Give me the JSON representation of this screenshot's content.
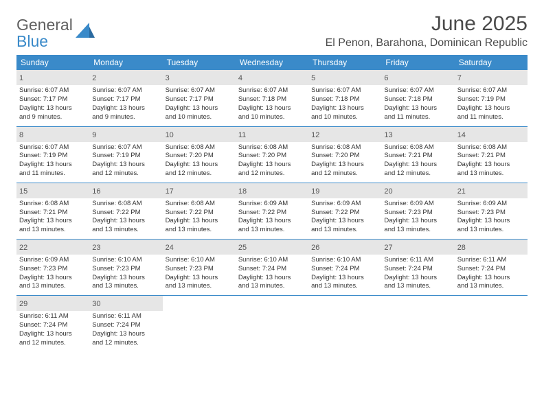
{
  "logo": {
    "line1": "General",
    "line2": "Blue"
  },
  "title": "June 2025",
  "subtitle": "El Penon, Barahona, Dominican Republic",
  "colors": {
    "header_bg": "#3a8ac9",
    "header_text": "#ffffff",
    "daynum_bg": "#e6e6e6",
    "border": "#3a8ac9",
    "body_text": "#333333",
    "title_text": "#4a4a4a"
  },
  "day_headers": [
    "Sunday",
    "Monday",
    "Tuesday",
    "Wednesday",
    "Thursday",
    "Friday",
    "Saturday"
  ],
  "weeks": [
    [
      {
        "n": "1",
        "sr": "Sunrise: 6:07 AM",
        "ss": "Sunset: 7:17 PM",
        "d1": "Daylight: 13 hours",
        "d2": "and 9 minutes."
      },
      {
        "n": "2",
        "sr": "Sunrise: 6:07 AM",
        "ss": "Sunset: 7:17 PM",
        "d1": "Daylight: 13 hours",
        "d2": "and 9 minutes."
      },
      {
        "n": "3",
        "sr": "Sunrise: 6:07 AM",
        "ss": "Sunset: 7:17 PM",
        "d1": "Daylight: 13 hours",
        "d2": "and 10 minutes."
      },
      {
        "n": "4",
        "sr": "Sunrise: 6:07 AM",
        "ss": "Sunset: 7:18 PM",
        "d1": "Daylight: 13 hours",
        "d2": "and 10 minutes."
      },
      {
        "n": "5",
        "sr": "Sunrise: 6:07 AM",
        "ss": "Sunset: 7:18 PM",
        "d1": "Daylight: 13 hours",
        "d2": "and 10 minutes."
      },
      {
        "n": "6",
        "sr": "Sunrise: 6:07 AM",
        "ss": "Sunset: 7:18 PM",
        "d1": "Daylight: 13 hours",
        "d2": "and 11 minutes."
      },
      {
        "n": "7",
        "sr": "Sunrise: 6:07 AM",
        "ss": "Sunset: 7:19 PM",
        "d1": "Daylight: 13 hours",
        "d2": "and 11 minutes."
      }
    ],
    [
      {
        "n": "8",
        "sr": "Sunrise: 6:07 AM",
        "ss": "Sunset: 7:19 PM",
        "d1": "Daylight: 13 hours",
        "d2": "and 11 minutes."
      },
      {
        "n": "9",
        "sr": "Sunrise: 6:07 AM",
        "ss": "Sunset: 7:19 PM",
        "d1": "Daylight: 13 hours",
        "d2": "and 12 minutes."
      },
      {
        "n": "10",
        "sr": "Sunrise: 6:08 AM",
        "ss": "Sunset: 7:20 PM",
        "d1": "Daylight: 13 hours",
        "d2": "and 12 minutes."
      },
      {
        "n": "11",
        "sr": "Sunrise: 6:08 AM",
        "ss": "Sunset: 7:20 PM",
        "d1": "Daylight: 13 hours",
        "d2": "and 12 minutes."
      },
      {
        "n": "12",
        "sr": "Sunrise: 6:08 AM",
        "ss": "Sunset: 7:20 PM",
        "d1": "Daylight: 13 hours",
        "d2": "and 12 minutes."
      },
      {
        "n": "13",
        "sr": "Sunrise: 6:08 AM",
        "ss": "Sunset: 7:21 PM",
        "d1": "Daylight: 13 hours",
        "d2": "and 12 minutes."
      },
      {
        "n": "14",
        "sr": "Sunrise: 6:08 AM",
        "ss": "Sunset: 7:21 PM",
        "d1": "Daylight: 13 hours",
        "d2": "and 13 minutes."
      }
    ],
    [
      {
        "n": "15",
        "sr": "Sunrise: 6:08 AM",
        "ss": "Sunset: 7:21 PM",
        "d1": "Daylight: 13 hours",
        "d2": "and 13 minutes."
      },
      {
        "n": "16",
        "sr": "Sunrise: 6:08 AM",
        "ss": "Sunset: 7:22 PM",
        "d1": "Daylight: 13 hours",
        "d2": "and 13 minutes."
      },
      {
        "n": "17",
        "sr": "Sunrise: 6:08 AM",
        "ss": "Sunset: 7:22 PM",
        "d1": "Daylight: 13 hours",
        "d2": "and 13 minutes."
      },
      {
        "n": "18",
        "sr": "Sunrise: 6:09 AM",
        "ss": "Sunset: 7:22 PM",
        "d1": "Daylight: 13 hours",
        "d2": "and 13 minutes."
      },
      {
        "n": "19",
        "sr": "Sunrise: 6:09 AM",
        "ss": "Sunset: 7:22 PM",
        "d1": "Daylight: 13 hours",
        "d2": "and 13 minutes."
      },
      {
        "n": "20",
        "sr": "Sunrise: 6:09 AM",
        "ss": "Sunset: 7:23 PM",
        "d1": "Daylight: 13 hours",
        "d2": "and 13 minutes."
      },
      {
        "n": "21",
        "sr": "Sunrise: 6:09 AM",
        "ss": "Sunset: 7:23 PM",
        "d1": "Daylight: 13 hours",
        "d2": "and 13 minutes."
      }
    ],
    [
      {
        "n": "22",
        "sr": "Sunrise: 6:09 AM",
        "ss": "Sunset: 7:23 PM",
        "d1": "Daylight: 13 hours",
        "d2": "and 13 minutes."
      },
      {
        "n": "23",
        "sr": "Sunrise: 6:10 AM",
        "ss": "Sunset: 7:23 PM",
        "d1": "Daylight: 13 hours",
        "d2": "and 13 minutes."
      },
      {
        "n": "24",
        "sr": "Sunrise: 6:10 AM",
        "ss": "Sunset: 7:23 PM",
        "d1": "Daylight: 13 hours",
        "d2": "and 13 minutes."
      },
      {
        "n": "25",
        "sr": "Sunrise: 6:10 AM",
        "ss": "Sunset: 7:24 PM",
        "d1": "Daylight: 13 hours",
        "d2": "and 13 minutes."
      },
      {
        "n": "26",
        "sr": "Sunrise: 6:10 AM",
        "ss": "Sunset: 7:24 PM",
        "d1": "Daylight: 13 hours",
        "d2": "and 13 minutes."
      },
      {
        "n": "27",
        "sr": "Sunrise: 6:11 AM",
        "ss": "Sunset: 7:24 PM",
        "d1": "Daylight: 13 hours",
        "d2": "and 13 minutes."
      },
      {
        "n": "28",
        "sr": "Sunrise: 6:11 AM",
        "ss": "Sunset: 7:24 PM",
        "d1": "Daylight: 13 hours",
        "d2": "and 13 minutes."
      }
    ],
    [
      {
        "n": "29",
        "sr": "Sunrise: 6:11 AM",
        "ss": "Sunset: 7:24 PM",
        "d1": "Daylight: 13 hours",
        "d2": "and 12 minutes."
      },
      {
        "n": "30",
        "sr": "Sunrise: 6:11 AM",
        "ss": "Sunset: 7:24 PM",
        "d1": "Daylight: 13 hours",
        "d2": "and 12 minutes."
      },
      null,
      null,
      null,
      null,
      null
    ]
  ]
}
